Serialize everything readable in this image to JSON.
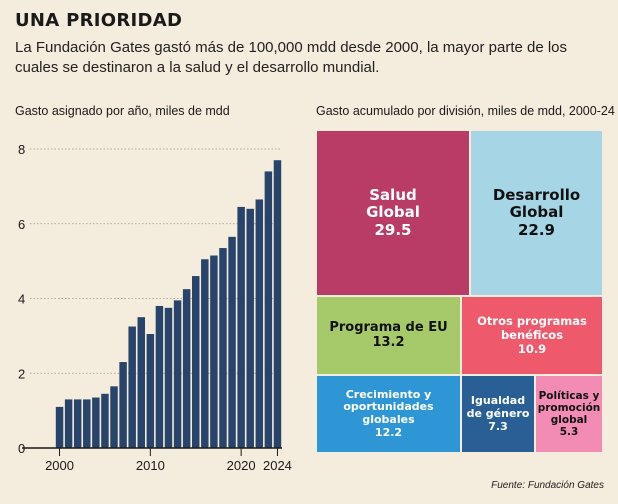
{
  "header": {
    "title": "UNA PRIORIDAD",
    "subtitle": "La Fundación Gates gastó más de 100,000 mdd desde 2000, la mayor parte de los cuales se destinaron a la salud y el desarrollo mundial."
  },
  "chart_data": [
    {
      "type": "bar",
      "title": "Gasto asignado por año, miles de mdd",
      "color": "#28446a",
      "ylim": [
        0,
        8
      ],
      "yticks": [
        "0",
        "2",
        "4",
        "6",
        "8"
      ],
      "xtick_labels": [
        "2000",
        "2010",
        "2020",
        "2024"
      ],
      "grid": true,
      "categories": [
        2000,
        2001,
        2002,
        2003,
        2004,
        2005,
        2006,
        2007,
        2008,
        2009,
        2010,
        2011,
        2012,
        2013,
        2014,
        2015,
        2016,
        2017,
        2018,
        2019,
        2020,
        2021,
        2022,
        2023,
        2024
      ],
      "values": [
        1.1,
        1.3,
        1.3,
        1.3,
        1.35,
        1.45,
        1.65,
        2.3,
        3.25,
        3.5,
        3.05,
        3.8,
        3.75,
        3.95,
        4.25,
        4.6,
        5.05,
        5.15,
        5.35,
        5.65,
        6.45,
        6.4,
        6.65,
        7.4,
        7.7
      ]
    },
    {
      "type": "treemap",
      "title": "Gasto acumulado por división, miles de mdd, 2000-24",
      "items": [
        {
          "label": "Salud Global",
          "value": "29.5",
          "color": "#b83c65"
        },
        {
          "label": "Desarrollo Global",
          "value": "22.9",
          "color": "#a6d6e6"
        },
        {
          "label": "Programa de EU",
          "value": "13.2",
          "color": "#a6c96a"
        },
        {
          "label": "Otros programas benéficos",
          "value": "10.9",
          "color": "#ee5a6c"
        },
        {
          "label": "Crecimiento y oportunidades globales",
          "value": "12.2",
          "color": "#2f96d6"
        },
        {
          "label": "Igualdad de género",
          "value": "7.3",
          "color": "#2a5f96"
        },
        {
          "label": "Políticas y promoción global",
          "value": "5.3",
          "color": "#f28cb4"
        }
      ]
    }
  ],
  "source": "Fuente: Fundación Gates"
}
